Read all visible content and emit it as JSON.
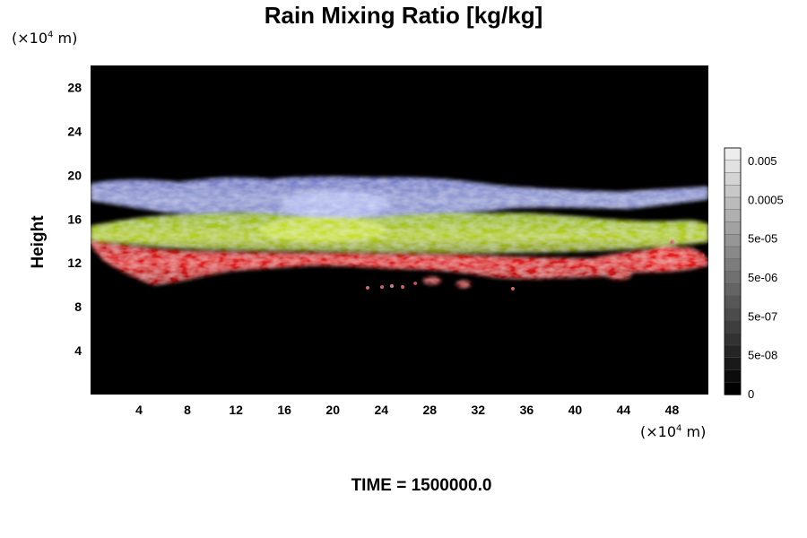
{
  "title": "Rain Mixing Ratio [kg/kg]",
  "y_unit_prefix": "(×10",
  "y_unit_exp": "4",
  "y_unit_suffix": " m)",
  "x_unit_prefix": "(×10",
  "x_unit_exp": "4",
  "x_unit_suffix": " m)",
  "time_label": "TIME = 1500000.0",
  "chart_data": {
    "type": "heatmap",
    "title": "Rain Mixing Ratio [kg/kg]",
    "xlabel": "",
    "ylabel": "Height",
    "x_unit": "(×10^4 m)",
    "y_unit": "(×10^4 m)",
    "xlim": [
      0,
      51
    ],
    "ylim": [
      0,
      30
    ],
    "x_ticks": [
      4,
      8,
      12,
      16,
      20,
      24,
      28,
      32,
      36,
      40,
      44,
      48
    ],
    "y_ticks": [
      4,
      8,
      12,
      16,
      20,
      24,
      28
    ],
    "background": "#000000",
    "layers": [
      {
        "color": "#8a94e6",
        "y_range": [
          16,
          19.8
        ],
        "x_range": [
          0,
          51
        ]
      },
      {
        "color": "#b4d21e",
        "y_range": [
          13,
          17
        ],
        "x_range": [
          0,
          51
        ]
      },
      {
        "color": "#e01818",
        "y_range": [
          10,
          13.5
        ],
        "x_range": [
          0,
          51
        ]
      }
    ],
    "colorbar": {
      "labels": [
        "0.005",
        "0.0005",
        "5e-05",
        "5e-06",
        "5e-07",
        "5e-08",
        "0"
      ],
      "levels": 20
    },
    "annotation": "TIME = 1500000.0"
  }
}
